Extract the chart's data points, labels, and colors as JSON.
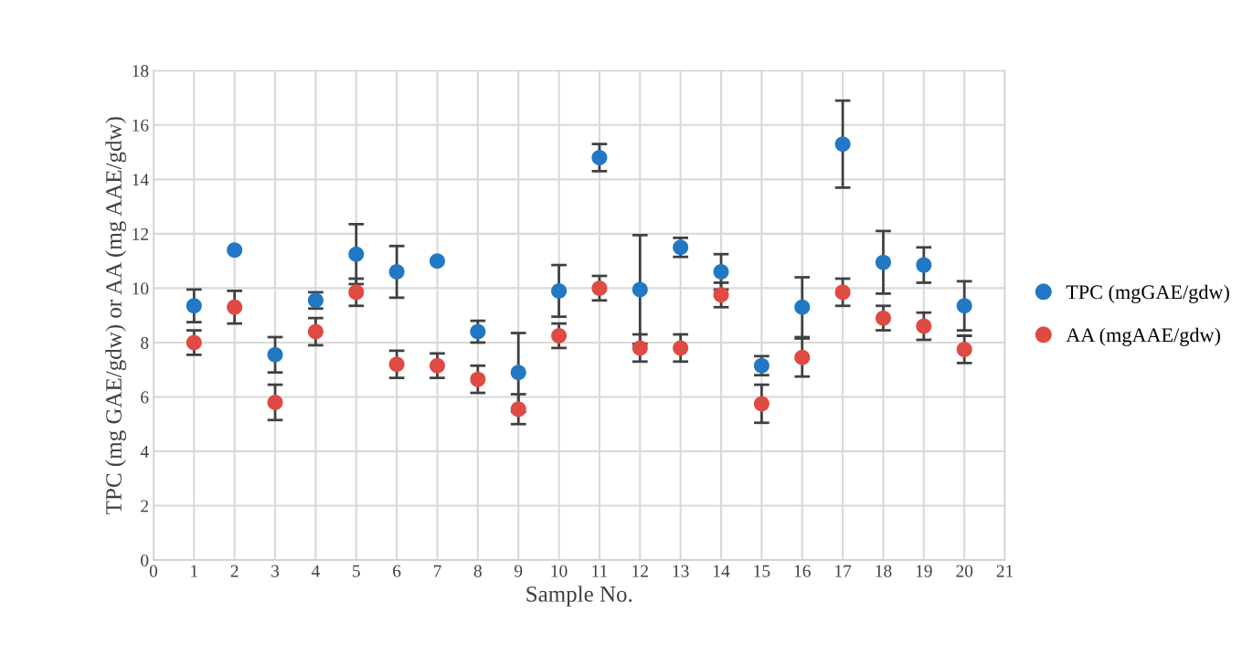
{
  "chart_data": {
    "type": "scatter",
    "xlabel": "Sample No.",
    "ylabel": "TPC (mg GAE/gdw) or AA (mg AAE/gdw)",
    "x": [
      1,
      2,
      3,
      4,
      5,
      6,
      7,
      8,
      9,
      10,
      11,
      12,
      13,
      14,
      15,
      16,
      17,
      18,
      19,
      20
    ],
    "series": [
      {
        "name": "TPC (mgGAE/gdw)",
        "color": "#2178c4",
        "values": [
          9.35,
          11.4,
          7.55,
          9.55,
          11.25,
          10.6,
          11.0,
          8.4,
          6.9,
          9.9,
          14.8,
          9.95,
          11.5,
          10.6,
          7.15,
          9.3,
          15.3,
          10.95,
          10.85,
          9.35
        ],
        "errors": [
          0.6,
          null,
          0.65,
          0.3,
          1.1,
          0.95,
          null,
          0.4,
          1.45,
          0.95,
          0.5,
          2.0,
          0.35,
          0.65,
          0.35,
          1.1,
          1.6,
          1.15,
          0.65,
          0.9
        ]
      },
      {
        "name": "AA (mgAAE/gdw)",
        "color": "#df4a43",
        "values": [
          8.0,
          9.3,
          5.8,
          8.4,
          9.85,
          7.2,
          7.15,
          6.65,
          5.55,
          8.25,
          10.0,
          7.8,
          7.8,
          9.75,
          5.75,
          7.45,
          9.85,
          8.9,
          8.6,
          7.75
        ],
        "errors": [
          0.45,
          0.6,
          0.65,
          0.5,
          0.5,
          0.5,
          0.45,
          0.5,
          0.55,
          0.45,
          0.45,
          0.5,
          0.5,
          0.45,
          0.7,
          0.7,
          0.5,
          0.45,
          0.5,
          0.5
        ]
      }
    ],
    "xlim": [
      0,
      21
    ],
    "xticks": [
      0,
      1,
      2,
      3,
      4,
      5,
      6,
      7,
      8,
      9,
      10,
      11,
      12,
      13,
      14,
      15,
      16,
      17,
      18,
      19,
      20,
      21
    ],
    "ylim": [
      0,
      18
    ],
    "yticks": [
      0,
      2,
      4,
      6,
      8,
      10,
      12,
      14,
      16,
      18
    ],
    "grid": true,
    "legend": "right",
    "marker": "circle"
  }
}
